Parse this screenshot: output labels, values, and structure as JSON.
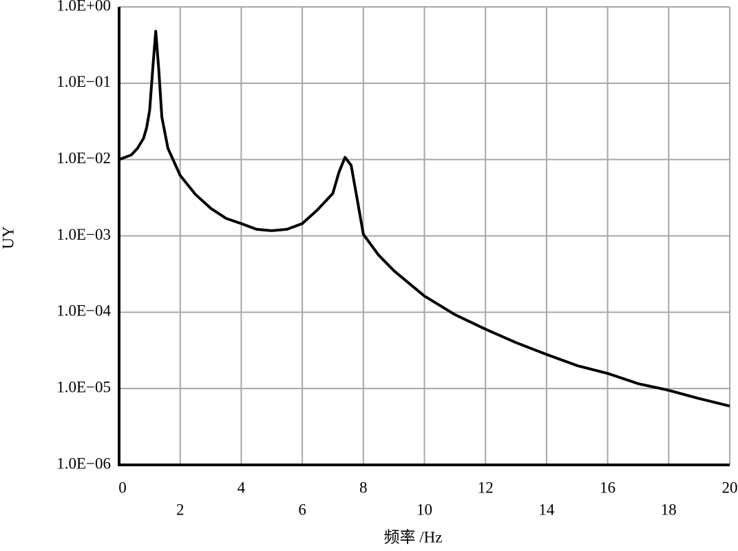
{
  "chart_data": {
    "type": "line",
    "x_label": "频率 /Hz",
    "y_label": "UY",
    "x": [
      0,
      0.4,
      0.6,
      0.8,
      0.9,
      1.0,
      1.1,
      1.2,
      1.3,
      1.4,
      1.6,
      2.0,
      2.5,
      3.0,
      3.5,
      4.0,
      4.5,
      5.0,
      5.5,
      6.0,
      6.5,
      7.0,
      7.2,
      7.4,
      7.6,
      7.8,
      8.0,
      8.5,
      9.0,
      10,
      11,
      12,
      13,
      14,
      15,
      16,
      17,
      18,
      19,
      20
    ],
    "series": [
      {
        "color": "#000000",
        "values": [
          0.01,
          0.0115,
          0.014,
          0.019,
          0.026,
          0.044,
          0.15,
          0.48,
          0.15,
          0.036,
          0.014,
          0.0062,
          0.0035,
          0.0023,
          0.0017,
          0.00145,
          0.00122,
          0.00117,
          0.00122,
          0.00145,
          0.0022,
          0.0036,
          0.0068,
          0.0107,
          0.0084,
          0.003,
          0.00105,
          0.00056,
          0.00035,
          0.000163,
          9.3e-05,
          6e-05,
          4e-05,
          2.8e-05,
          2e-05,
          1.58e-05,
          1.16e-05,
          9.5e-06,
          7.4e-06,
          5.9e-06
        ]
      }
    ],
    "xlim": [
      0,
      20
    ],
    "xticks": [
      0,
      2,
      4,
      6,
      8,
      10,
      12,
      14,
      16,
      18,
      20
    ],
    "ylim": [
      1e-06,
      1
    ],
    "y_log": true,
    "yticks": [
      {
        "value": 1e-06,
        "label": "1.0E−06"
      },
      {
        "value": 1e-05,
        "label": "1.0E−05"
      },
      {
        "value": 0.0001,
        "label": "1.0E−04"
      },
      {
        "value": 0.001,
        "label": "1.0E−03"
      },
      {
        "value": 0.01,
        "label": "1.0E−02"
      },
      {
        "value": 0.1,
        "label": "1.0E−01"
      },
      {
        "value": 1,
        "label": "1.0E+00"
      }
    ],
    "grid": true
  }
}
